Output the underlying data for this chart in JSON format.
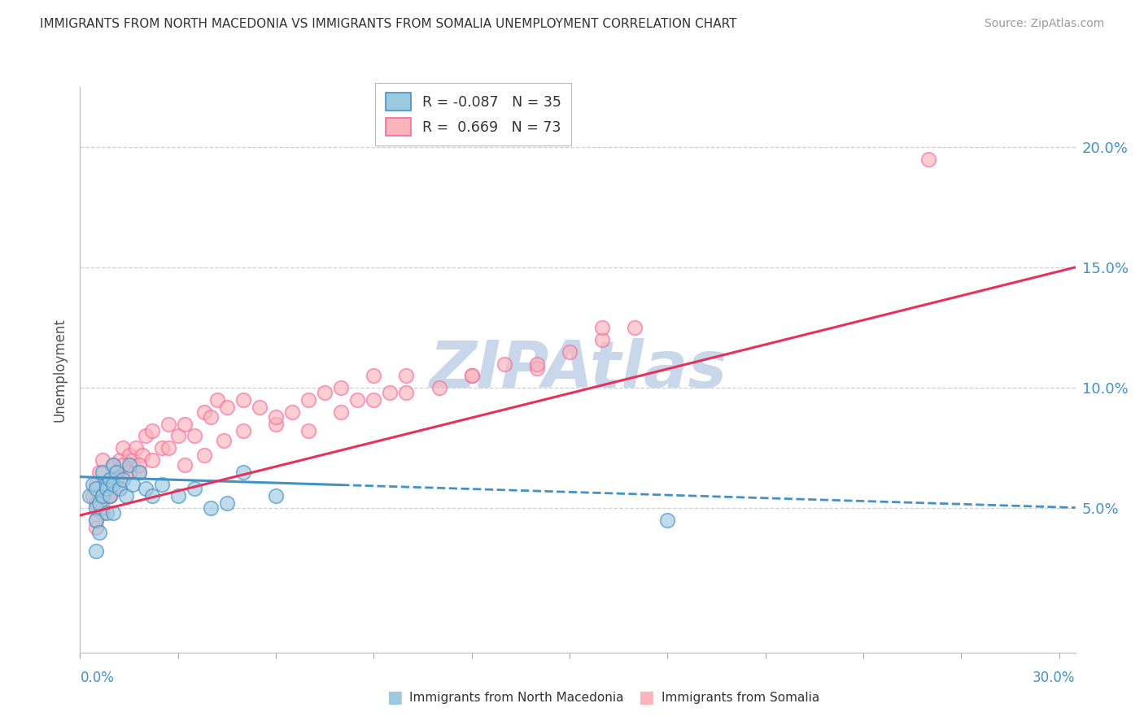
{
  "title": "IMMIGRANTS FROM NORTH MACEDONIA VS IMMIGRANTS FROM SOMALIA UNEMPLOYMENT CORRELATION CHART",
  "source": "Source: ZipAtlas.com",
  "ylabel": "Unemployment",
  "ytick_labels": [
    "5.0%",
    "10.0%",
    "15.0%",
    "20.0%"
  ],
  "ytick_values": [
    0.05,
    0.1,
    0.15,
    0.2
  ],
  "xlim": [
    0.0,
    0.305
  ],
  "ylim": [
    -0.01,
    0.225
  ],
  "color_blue": "#9ecae1",
  "color_blue_edge": "#4292c6",
  "color_pink": "#fbb4b9",
  "color_pink_edge": "#f768a1",
  "color_blue_line": "#4292c6",
  "color_pink_line": "#e8305a",
  "watermark_text": "ZIPAtlas",
  "watermark_color": "#c8d8ea",
  "series1_label": "Immigrants from North Macedonia",
  "series2_label": "Immigrants from Somalia",
  "legend_r1": "-0.087",
  "legend_n1": "35",
  "legend_r2": "0.669",
  "legend_n2": "73",
  "blue_x": [
    0.003,
    0.004,
    0.005,
    0.005,
    0.005,
    0.006,
    0.006,
    0.007,
    0.007,
    0.008,
    0.008,
    0.008,
    0.009,
    0.009,
    0.01,
    0.01,
    0.01,
    0.011,
    0.012,
    0.013,
    0.014,
    0.015,
    0.016,
    0.018,
    0.02,
    0.022,
    0.025,
    0.03,
    0.035,
    0.04,
    0.045,
    0.05,
    0.06,
    0.18,
    0.005
  ],
  "blue_y": [
    0.055,
    0.06,
    0.05,
    0.045,
    0.058,
    0.04,
    0.052,
    0.065,
    0.055,
    0.048,
    0.06,
    0.058,
    0.062,
    0.055,
    0.068,
    0.06,
    0.048,
    0.065,
    0.058,
    0.062,
    0.055,
    0.068,
    0.06,
    0.065,
    0.058,
    0.055,
    0.06,
    0.055,
    0.058,
    0.05,
    0.052,
    0.065,
    0.055,
    0.045,
    0.032
  ],
  "pink_x": [
    0.004,
    0.005,
    0.005,
    0.006,
    0.007,
    0.008,
    0.009,
    0.009,
    0.01,
    0.011,
    0.012,
    0.013,
    0.014,
    0.015,
    0.016,
    0.017,
    0.018,
    0.019,
    0.02,
    0.022,
    0.025,
    0.027,
    0.03,
    0.032,
    0.035,
    0.038,
    0.04,
    0.042,
    0.045,
    0.05,
    0.055,
    0.06,
    0.065,
    0.07,
    0.075,
    0.08,
    0.085,
    0.09,
    0.095,
    0.1,
    0.11,
    0.12,
    0.13,
    0.14,
    0.15,
    0.16,
    0.17,
    0.005,
    0.007,
    0.009,
    0.012,
    0.015,
    0.018,
    0.022,
    0.027,
    0.032,
    0.038,
    0.044,
    0.05,
    0.06,
    0.07,
    0.08,
    0.09,
    0.1,
    0.12,
    0.14,
    0.005,
    0.007,
    0.009,
    0.011,
    0.013,
    0.26,
    0.16
  ],
  "pink_y": [
    0.055,
    0.06,
    0.052,
    0.065,
    0.07,
    0.058,
    0.055,
    0.062,
    0.068,
    0.065,
    0.07,
    0.075,
    0.065,
    0.072,
    0.07,
    0.075,
    0.065,
    0.072,
    0.08,
    0.082,
    0.075,
    0.085,
    0.08,
    0.085,
    0.08,
    0.09,
    0.088,
    0.095,
    0.092,
    0.095,
    0.092,
    0.085,
    0.09,
    0.095,
    0.098,
    0.1,
    0.095,
    0.105,
    0.098,
    0.105,
    0.1,
    0.105,
    0.11,
    0.108,
    0.115,
    0.12,
    0.125,
    0.042,
    0.048,
    0.055,
    0.058,
    0.065,
    0.068,
    0.07,
    0.075,
    0.068,
    0.072,
    0.078,
    0.082,
    0.088,
    0.082,
    0.09,
    0.095,
    0.098,
    0.105,
    0.11,
    0.045,
    0.05,
    0.055,
    0.062,
    0.068,
    0.195,
    0.125
  ]
}
